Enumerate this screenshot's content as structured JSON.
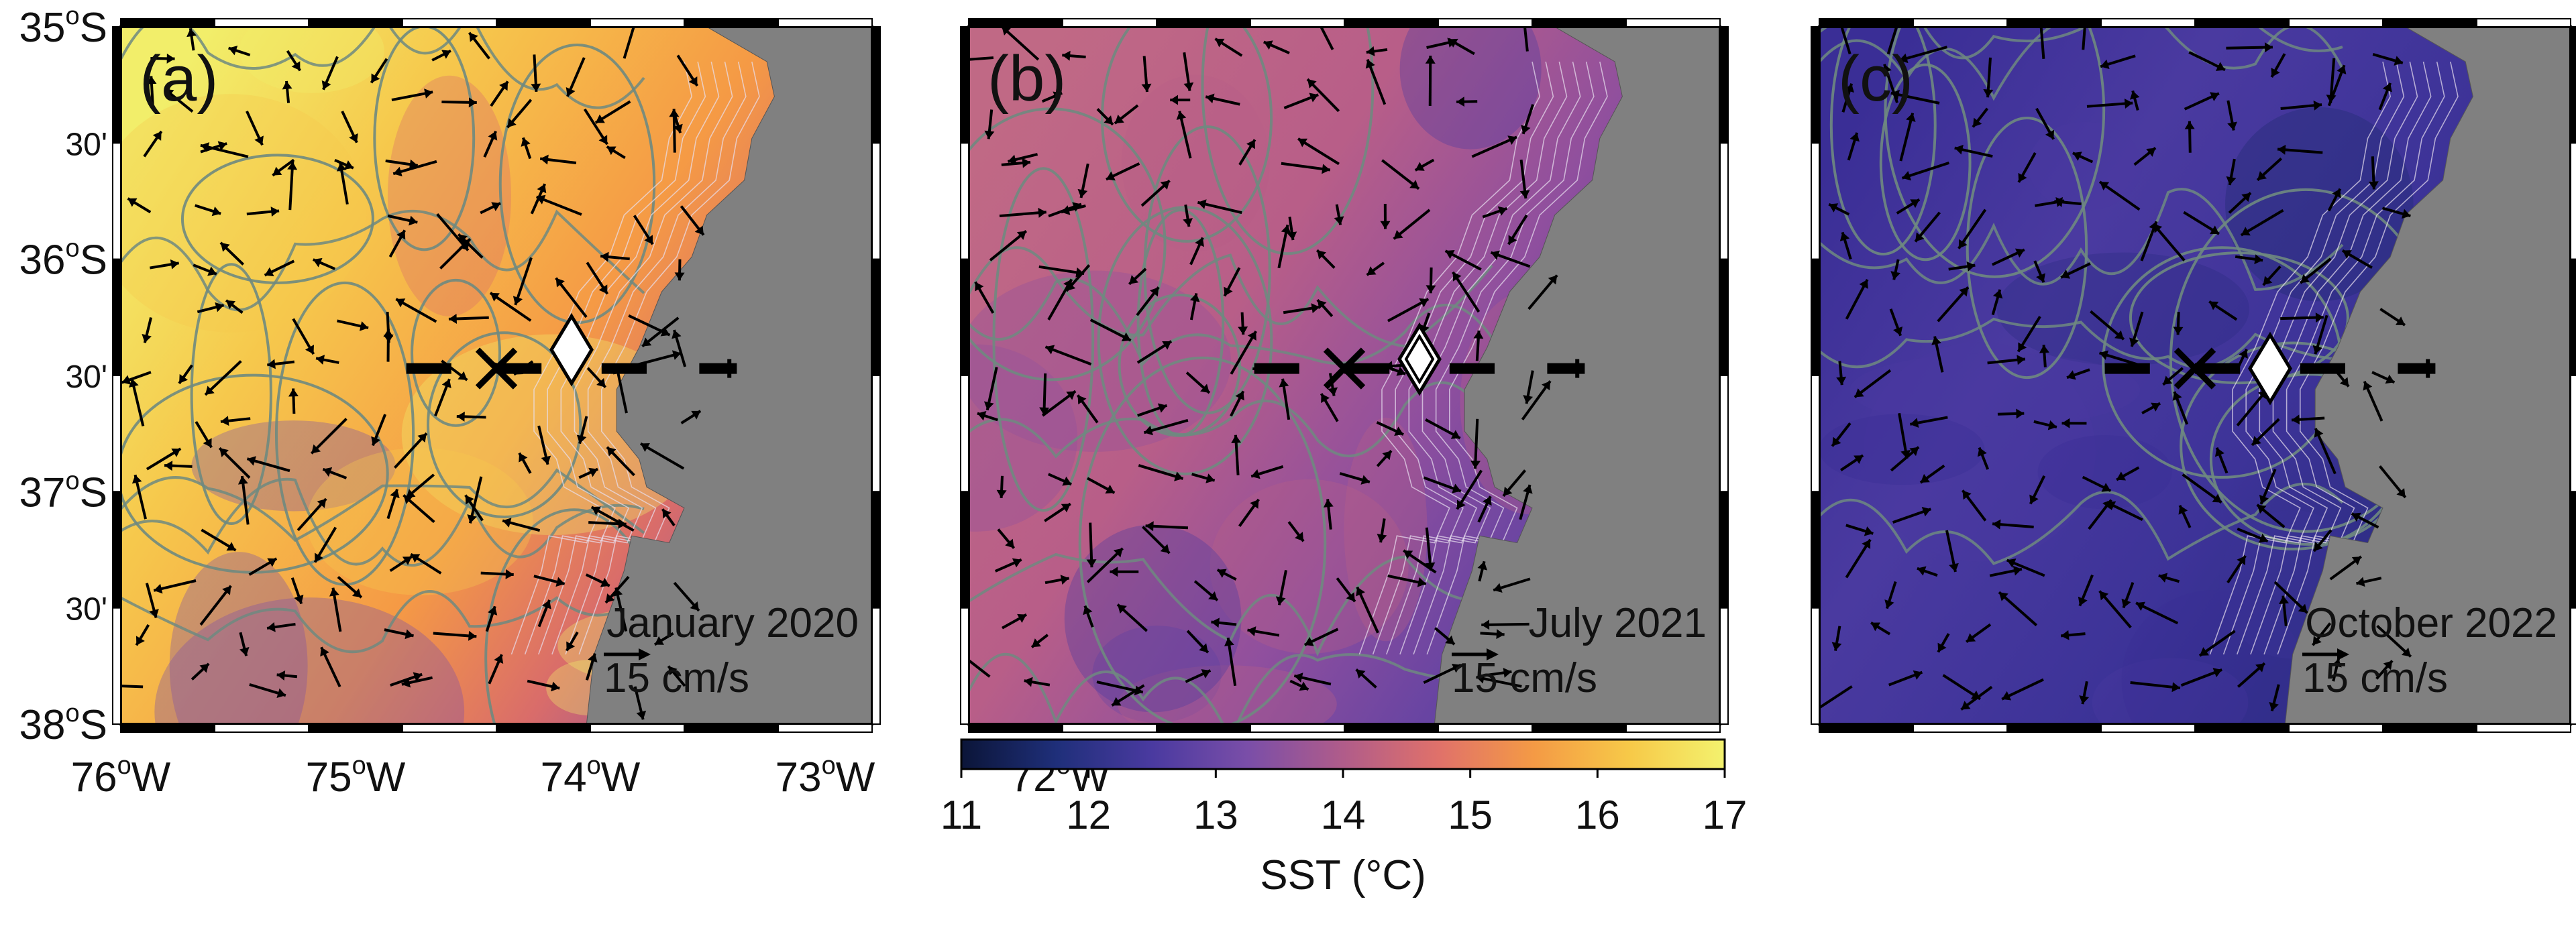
{
  "panels": [
    {
      "label": "(a)",
      "date": "January 2020",
      "scale": "15 cm/s",
      "theme": "warm"
    },
    {
      "label": "(b)",
      "date": "July 2021",
      "scale": "15 cm/s",
      "theme": "mid"
    },
    {
      "label": "(c)",
      "date": "October 2022",
      "scale": "15 cm/s",
      "theme": "cool"
    }
  ],
  "lat_ticks": [
    {
      "deg": "35",
      "min": "",
      "hemi": "S",
      "minor": false
    },
    {
      "deg": "",
      "min": "30'",
      "hemi": "",
      "minor": true
    },
    {
      "deg": "36",
      "min": "",
      "hemi": "S",
      "minor": false
    },
    {
      "deg": "",
      "min": "30'",
      "hemi": "",
      "minor": true
    },
    {
      "deg": "37",
      "min": "",
      "hemi": "S",
      "minor": false
    },
    {
      "deg": "",
      "min": "30'",
      "hemi": "",
      "minor": true
    },
    {
      "deg": "38",
      "min": "",
      "hemi": "S",
      "minor": false
    }
  ],
  "lon_ticks": [
    {
      "deg": "76",
      "hemi": "W"
    },
    {
      "deg": "75",
      "hemi": "W"
    },
    {
      "deg": "74",
      "hemi": "W"
    },
    {
      "deg": "73",
      "hemi": "W"
    },
    {
      "deg": "72",
      "hemi": "W"
    }
  ],
  "degree_symbol": "o",
  "colorbar": {
    "label": "SST (°C)",
    "ticks": [
      "11",
      "12",
      "13",
      "14",
      "15",
      "16",
      "17"
    ],
    "colors": [
      "#0b1538",
      "#1f2f7a",
      "#4a3aa0",
      "#7a4ea8",
      "#b05c8a",
      "#e0716a",
      "#f49a45",
      "#f7c948",
      "#f3f26e"
    ]
  },
  "colors": {
    "land": "#808080",
    "contour": "#6f8a80",
    "arrow": "#000000",
    "isobath": "#e8e0f0"
  },
  "markers": {
    "x_mark": "x-symbol",
    "diamond_mark": "diamond-symbol"
  }
}
